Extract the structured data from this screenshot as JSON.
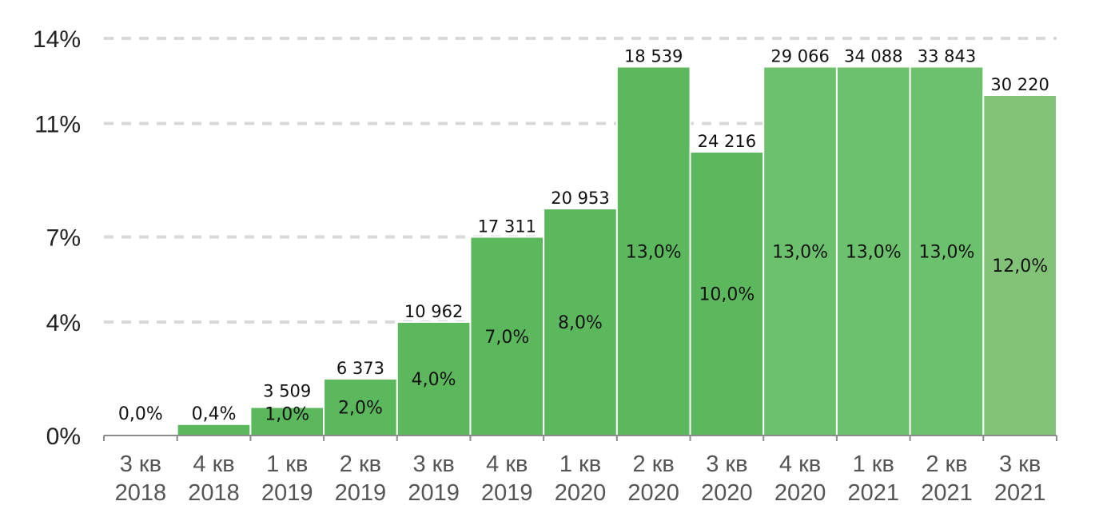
{
  "chart_data": {
    "type": "bar",
    "categories": [
      [
        "3 кв",
        "2018"
      ],
      [
        "4 кв",
        "2018"
      ],
      [
        "1 кв",
        "2019"
      ],
      [
        "2 кв",
        "2019"
      ],
      [
        "3 кв",
        "2019"
      ],
      [
        "4 кв",
        "2019"
      ],
      [
        "1 кв",
        "2020"
      ],
      [
        "2 кв",
        "2020"
      ],
      [
        "3 кв",
        "2020"
      ],
      [
        "4 кв",
        "2020"
      ],
      [
        "1 кв",
        "2021"
      ],
      [
        "2 кв",
        "2021"
      ],
      [
        "3 кв",
        "2021"
      ]
    ],
    "values": [
      0.0,
      0.4,
      1.0,
      2.0,
      4.0,
      7.0,
      8.0,
      13.0,
      10.0,
      13.0,
      13.0,
      13.0,
      12.0
    ],
    "percent_labels": [
      "0,0%",
      "0,4%",
      "1,0%",
      "2,0%",
      "4,0%",
      "7,0%",
      "8,0%",
      "13,0%",
      "10,0%",
      "13,0%",
      "13,0%",
      "13,0%",
      "12,0%"
    ],
    "top_labels": [
      "",
      "",
      "3 509",
      "6 373",
      "10 962",
      "17 311",
      "20 953",
      "18 539",
      "24 216",
      "29 066",
      "34 088",
      "33 843",
      "30 220"
    ],
    "bar_colors": [
      "#5cb85c",
      "#5cb85c",
      "#5cb85c",
      "#5cb85c",
      "#5cb85c",
      "#5cb85c",
      "#5cb85c",
      "#5cb85c",
      "#5cb85c",
      "#6cc26c",
      "#6cc26c",
      "#6cc26c",
      "#82c378"
    ],
    "y_ticks": [
      0,
      4,
      7,
      11,
      14
    ],
    "y_tick_labels": [
      "0%",
      "4%",
      "7%",
      "11%",
      "14%"
    ],
    "ylim": [
      0,
      14
    ],
    "grid": true,
    "title": "",
    "xlabel": "",
    "ylabel": ""
  }
}
